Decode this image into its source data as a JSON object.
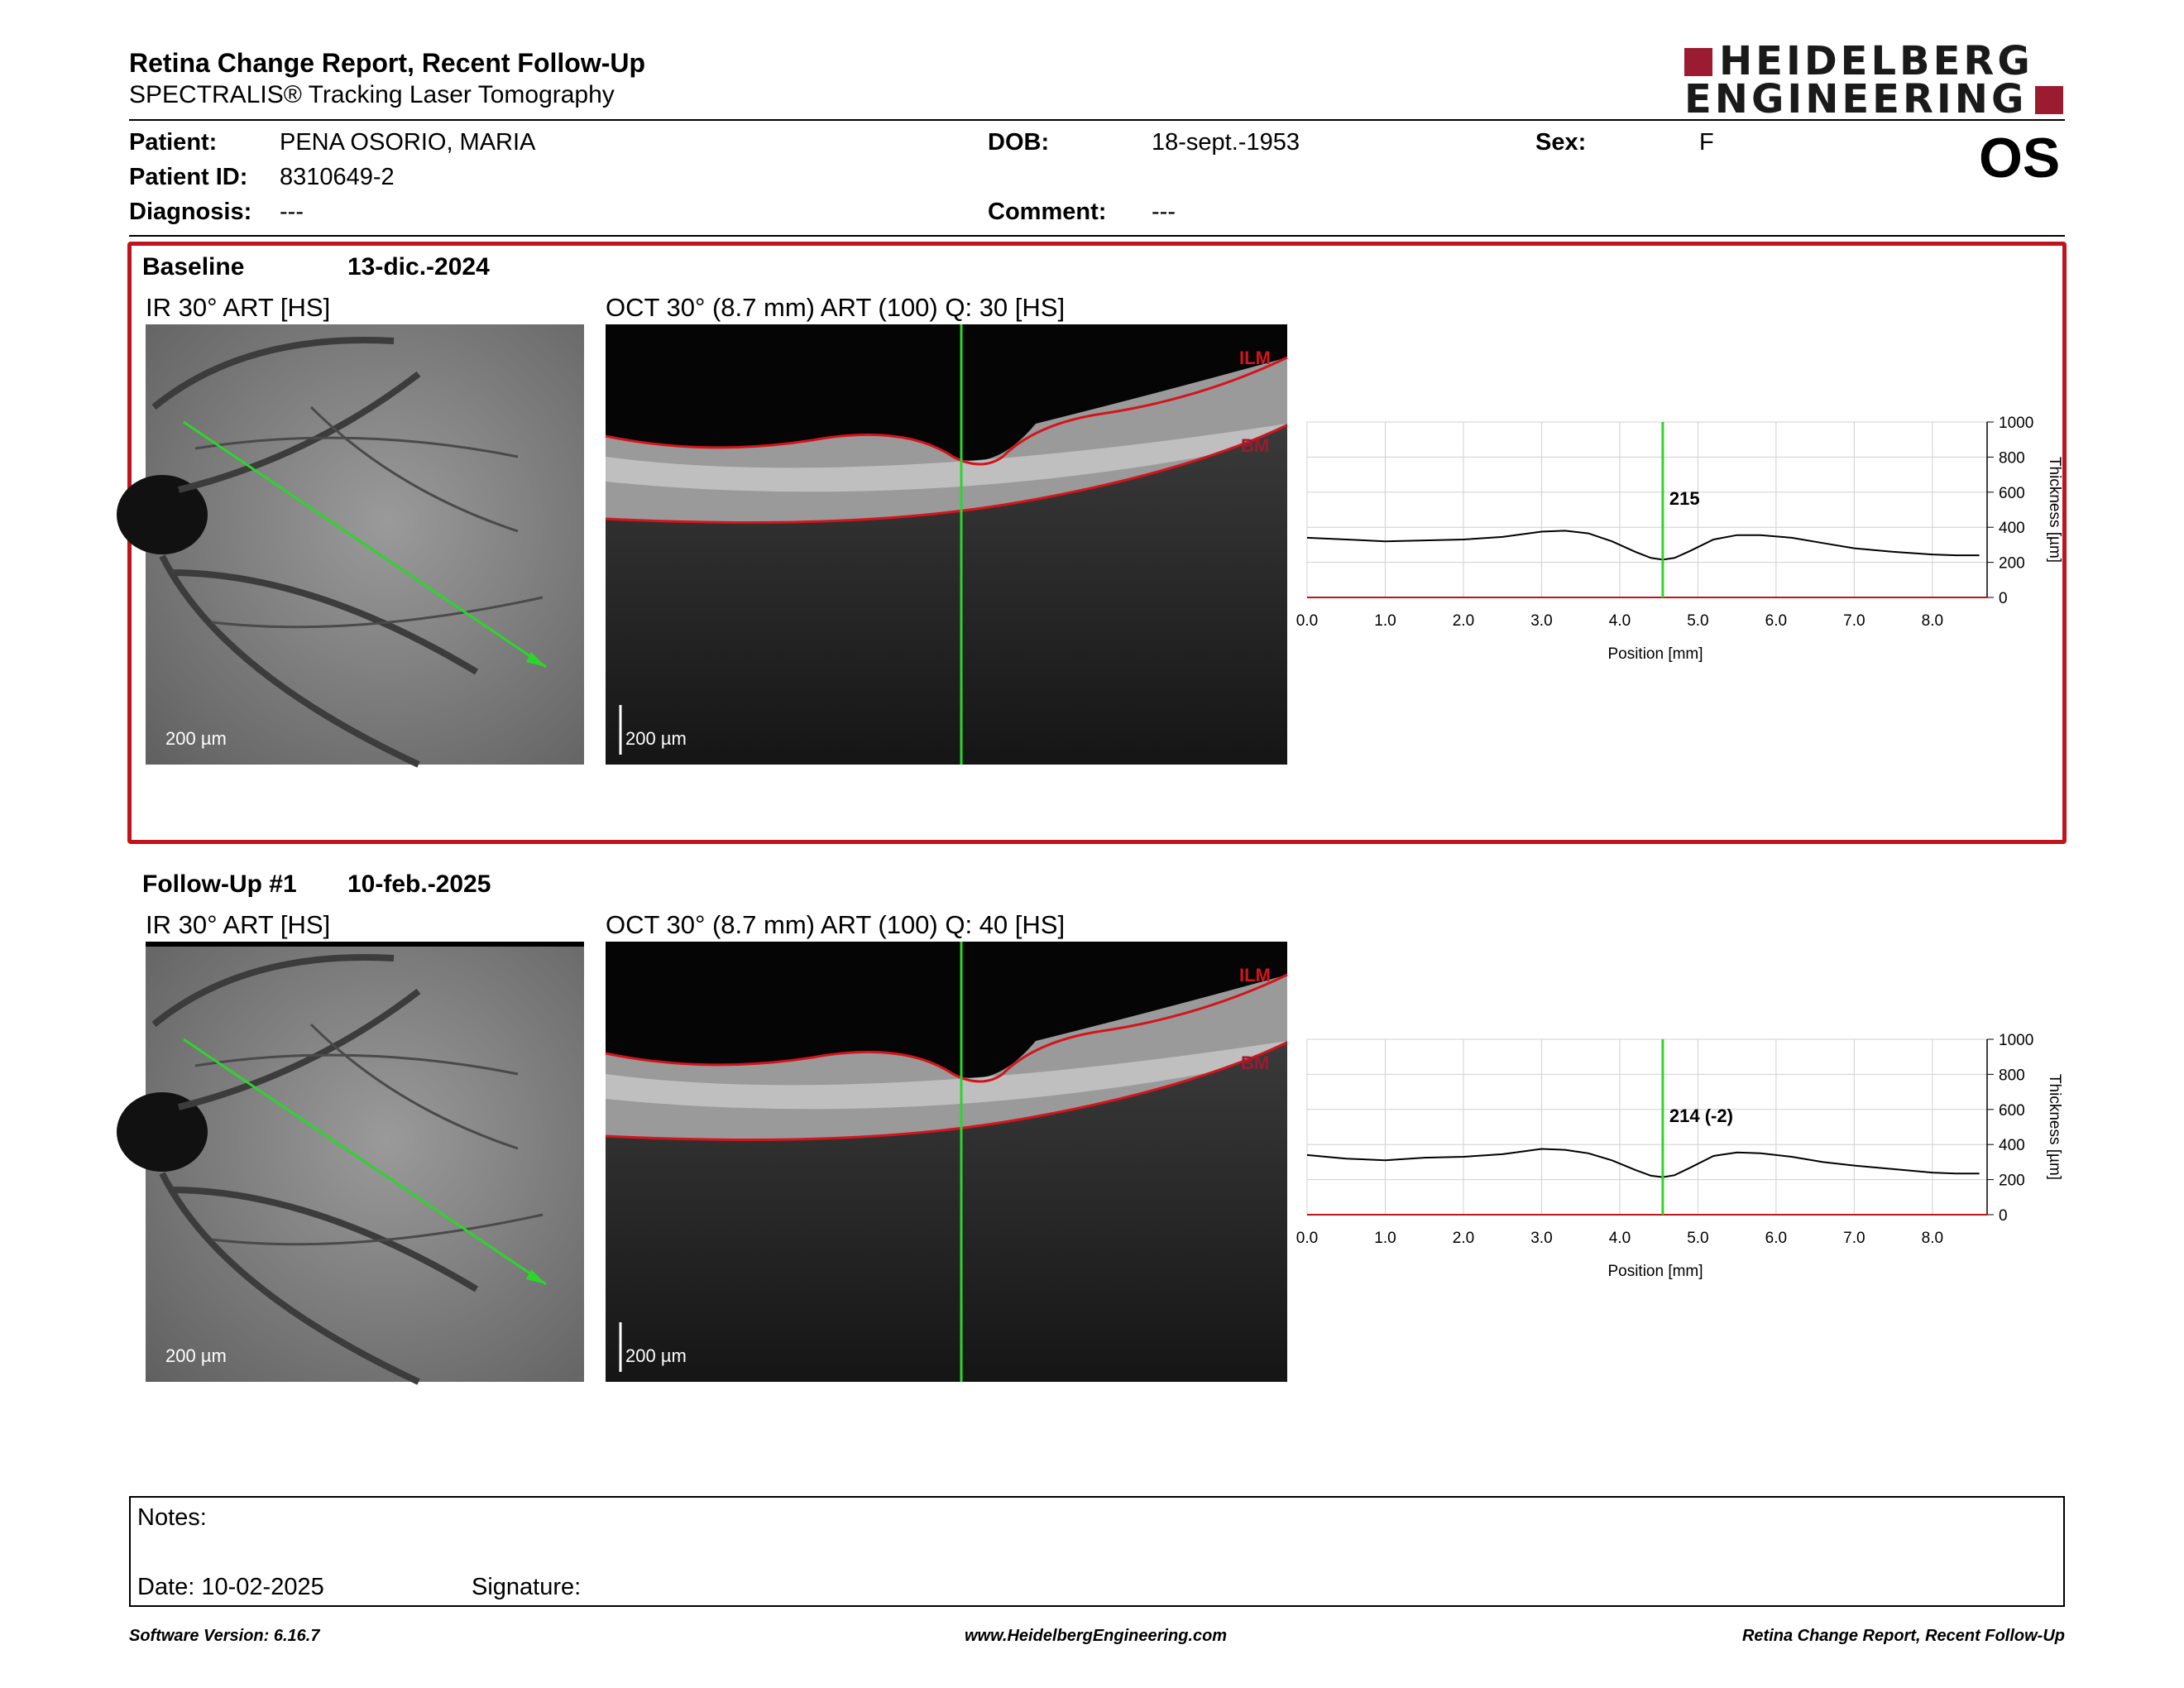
{
  "header": {
    "title": "Retina Change Report, Recent Follow-Up",
    "subtitle": "SPECTRALIS® Tracking Laser Tomography",
    "logo_line1": "HEIDELBERG",
    "logo_line2": "ENGINEERING",
    "eye": "OS"
  },
  "patient": {
    "patient_label": "Patient:",
    "patient_value": "PENA OSORIO, MARIA",
    "id_label": "Patient ID:",
    "id_value": "8310649-2",
    "diagnosis_label": "Diagnosis:",
    "diagnosis_value": "---",
    "dob_label": "DOB:",
    "dob_value": "18-sept.-1953",
    "comment_label": "Comment:",
    "comment_value": "---",
    "sex_label": "Sex:",
    "sex_value": "F"
  },
  "baseline": {
    "label": "Baseline",
    "date": "13-dic.-2024",
    "ir_label": "IR 30° ART [HS]",
    "oct_label": "OCT 30° (8.7 mm) ART (100) Q: 30 [HS]",
    "ir_scale": "200 µm",
    "oct_scale": "200 µm",
    "ilm": "ILM",
    "bm": "BM",
    "marker_value": "215"
  },
  "followup": {
    "label": "Follow-Up #1",
    "date": "10-feb.-2025",
    "ir_label": "IR 30° ART [HS]",
    "oct_label": "OCT 30° (8.7 mm) ART (100) Q: 40 [HS]",
    "ir_scale": "200 µm",
    "oct_scale": "200 µm",
    "ilm": "ILM",
    "bm": "BM",
    "marker_value": "214 (-2)"
  },
  "chart_data": [
    {
      "type": "line",
      "xlabel": "Position [mm]",
      "ylabel": "Thickness [µm]",
      "xlim": [
        0,
        8.7
      ],
      "ylim": [
        0,
        1000
      ],
      "xticks": [
        "0.0",
        "1.0",
        "2.0",
        "3.0",
        "4.0",
        "5.0",
        "6.0",
        "7.0",
        "8.0"
      ],
      "yticks": [
        "0",
        "200",
        "400",
        "600",
        "800",
        "1000"
      ],
      "grid": true,
      "marker_x": 4.55,
      "marker_label": "215",
      "series": [
        {
          "x": [
            0,
            0.5,
            1.0,
            1.5,
            2.0,
            2.5,
            3.0,
            3.3,
            3.6,
            3.9,
            4.2,
            4.4,
            4.55,
            4.7,
            4.9,
            5.2,
            5.5,
            5.8,
            6.2,
            6.6,
            7.0,
            7.5,
            8.0,
            8.3,
            8.6
          ],
          "y": [
            340,
            330,
            320,
            325,
            330,
            345,
            375,
            380,
            365,
            320,
            260,
            225,
            215,
            225,
            265,
            330,
            355,
            355,
            340,
            310,
            280,
            260,
            245,
            240,
            240
          ]
        }
      ]
    },
    {
      "type": "line",
      "xlabel": "Position [mm]",
      "ylabel": "Thickness [µm]",
      "xlim": [
        0,
        8.7
      ],
      "ylim": [
        0,
        1000
      ],
      "xticks": [
        "0.0",
        "1.0",
        "2.0",
        "3.0",
        "4.0",
        "5.0",
        "6.0",
        "7.0",
        "8.0"
      ],
      "yticks": [
        "0",
        "200",
        "400",
        "600",
        "800",
        "1000"
      ],
      "grid": true,
      "marker_x": 4.55,
      "marker_label": "214 (-2)",
      "series": [
        {
          "x": [
            0,
            0.5,
            1.0,
            1.5,
            2.0,
            2.5,
            3.0,
            3.3,
            3.6,
            3.9,
            4.2,
            4.4,
            4.55,
            4.7,
            4.9,
            5.2,
            5.5,
            5.8,
            6.2,
            6.6,
            7.0,
            7.5,
            8.0,
            8.3,
            8.6
          ],
          "y": [
            340,
            320,
            310,
            325,
            330,
            345,
            375,
            370,
            350,
            310,
            255,
            222,
            214,
            225,
            268,
            335,
            355,
            350,
            330,
            300,
            280,
            260,
            240,
            235,
            235
          ]
        }
      ]
    }
  ],
  "notes": {
    "notes_label": "Notes:",
    "date_label": "Date: 10-02-2025",
    "signature_label": "Signature:"
  },
  "footer": {
    "software": "Software Version: 6.16.7",
    "website": "www.HeidelbergEngineering.com",
    "report": "Retina Change Report, Recent Follow-Up"
  },
  "colors": {
    "accent_red": "#c0141c",
    "logo_red": "#9b1b30",
    "marker_green": "#2bd62b",
    "segment_red": "#d4141c"
  }
}
